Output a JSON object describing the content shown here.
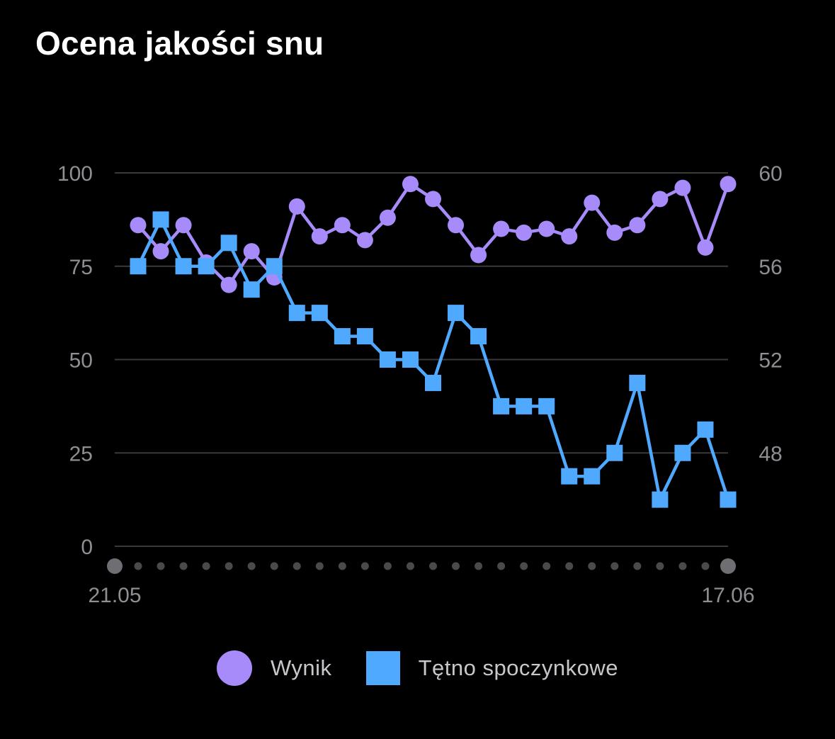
{
  "chart_data": {
    "type": "line",
    "title": "Ocena jakości snu",
    "x_start_label": "21.05",
    "x_end_label": "17.06",
    "num_points": 27,
    "left_axis": {
      "ylim": [
        0,
        100
      ],
      "ticks": [
        "100",
        "75",
        "50",
        "25",
        "0"
      ]
    },
    "right_axis": {
      "ylim": [
        44,
        60
      ],
      "ticks": [
        "60",
        "56",
        "52",
        "48"
      ]
    },
    "series": [
      {
        "name": "Wynik",
        "axis": "left",
        "marker": "circle",
        "color": "#a78bfa",
        "values": [
          86,
          79,
          86,
          76,
          70,
          79,
          72,
          91,
          83,
          86,
          82,
          88,
          97,
          93,
          86,
          78,
          85,
          84,
          85,
          83,
          92,
          84,
          86,
          93,
          96,
          80,
          97
        ]
      },
      {
        "name": "Tętno spoczynkowe",
        "axis": "right",
        "marker": "square",
        "color": "#4faaff",
        "values": [
          56,
          58,
          56,
          56,
          57,
          55,
          56,
          54,
          54,
          53,
          53,
          52,
          52,
          51,
          54,
          53,
          50,
          50,
          50,
          47,
          47,
          48,
          51,
          46,
          48,
          49,
          46
        ]
      }
    ]
  },
  "legend": {
    "items": [
      {
        "label": "Wynik",
        "color": "#a78bfa",
        "shape": "circle"
      },
      {
        "label": "Tętno spoczynkowe",
        "color": "#4faaff",
        "shape": "square"
      }
    ]
  }
}
